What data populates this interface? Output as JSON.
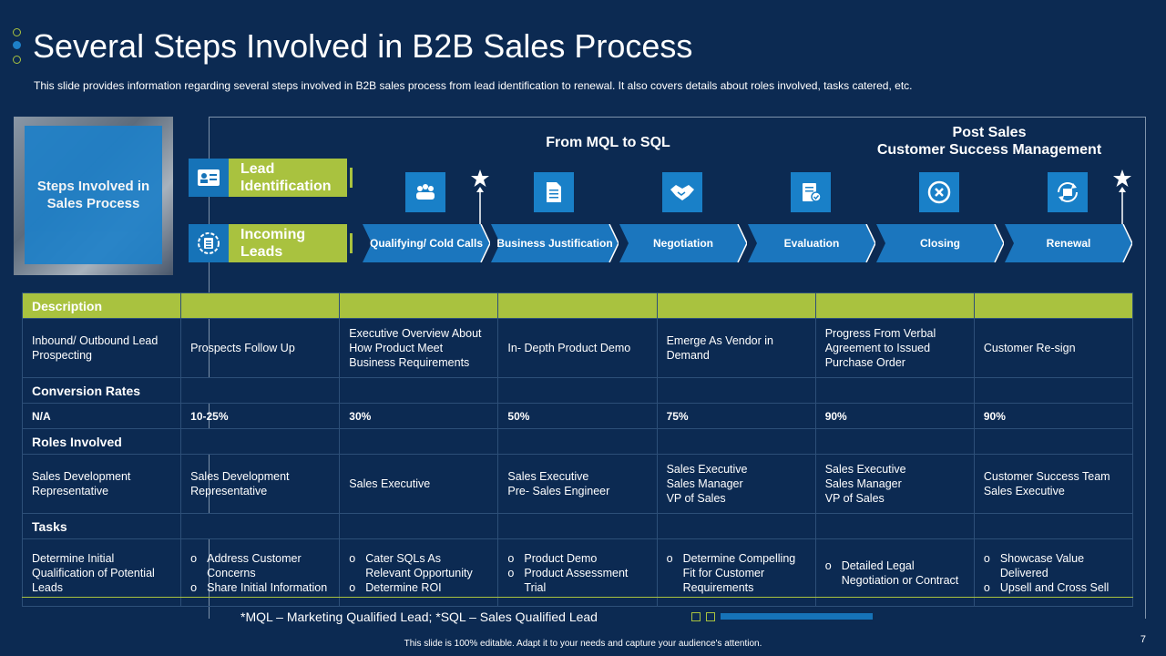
{
  "colors": {
    "background": "#0c2a52",
    "accent_green": "#a9c23f",
    "accent_blue": "#1673b8",
    "arrow_blue": "#1b76be"
  },
  "title": "Several Steps Involved in B2B Sales Process",
  "subtitle": "This slide provides  information  regarding  several  steps involved   in B2B sales process from lead identification to renewal.  It also covers details about roles involved,  tasks catered, etc.",
  "image_box_label": "Steps Involved in Sales Process",
  "lead_identification": "Lead Identification",
  "incoming_leads": "Incoming Leads",
  "section_mql": "From MQL to SQL",
  "section_post_sales_1": "Post Sales",
  "section_post_sales_2": "Customer Success Management",
  "steps": [
    "Qualifying/ Cold Calls",
    "Business Justification",
    "Negotiation",
    "Evaluation",
    "Closing",
    "Renewal"
  ],
  "step_icons": [
    "team-icon",
    "document-icon",
    "handshake-icon",
    "checklist-icon",
    "close-circle-icon",
    "renew-icon"
  ],
  "table": {
    "description_label": "Description",
    "description": [
      "Inbound/ Outbound Lead Prospecting",
      "Prospects Follow Up",
      "Executive Overview  About How Product Meet Business Requirements",
      "In- Depth Product Demo",
      "Emerge As Vendor in Demand",
      "Progress From Verbal Agreement to Issued Purchase Order",
      "Customer Re-sign"
    ],
    "conversion_label": "Conversion Rates",
    "conversion": [
      "N/A",
      "10-25%",
      "30%",
      "50%",
      "75%",
      "90%",
      "90%"
    ],
    "roles_label": "Roles Involved",
    "roles": [
      "Sales Development Representative",
      "Sales Development Representative",
      "Sales Executive",
      "Sales Executive\nPre- Sales Engineer",
      "Sales Executive\nSales Manager\nVP of Sales",
      "Sales Executive\nSales Manager\nVP of Sales",
      "Customer Success Team\nSales Executive"
    ],
    "tasks_label": "Tasks",
    "tasks": [
      [
        "Determine Initial Qualification of Potential Leads"
      ],
      [
        "Address Customer Concerns",
        "Share Initial Information"
      ],
      [
        "Cater SQLs As Relevant Opportunity",
        "Determine ROI"
      ],
      [
        "Product Demo",
        "Product Assessment Trial"
      ],
      [
        "Determine Compelling Fit for Customer Requirements"
      ],
      [
        "Detailed Legal Negotiation or Contract"
      ],
      [
        "Showcase Value Delivered",
        "Upsell and Cross Sell"
      ]
    ]
  },
  "footnote": "*MQL – Marketing Qualified Lead;  *SQL – Sales Qualified Lead",
  "footer": "This slide is 100% editable.  Adapt it to your needs and capture your audience's attention.",
  "page_number": "7"
}
